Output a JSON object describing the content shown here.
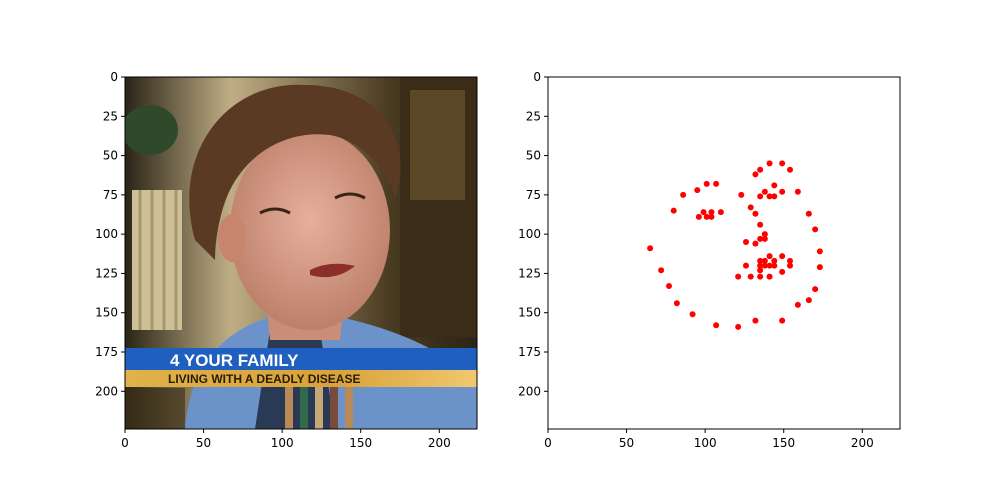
{
  "figure": {
    "background": "#ffffff",
    "panels": [
      "photo",
      "landmarks"
    ]
  },
  "photo_panel": {
    "caption_main": "4 YOUR FAMILY",
    "caption_sub": "LIVING WITH A DEADLY DISEASE",
    "colors": {
      "banner_blue": "#1f5fbf",
      "banner_gold": "#d9a23a",
      "hair": "#5a3a22",
      "skin": "#d89a86",
      "jacket": "#6b93c9",
      "background_warm": "#c9b98e",
      "background_dark": "#2b2417"
    }
  },
  "chart_data": [
    {
      "type": "image",
      "title": "",
      "xlabel": "",
      "ylabel": "",
      "xlim": [
        0,
        224
      ],
      "ylim": [
        224,
        0
      ],
      "xticks": [
        0,
        50,
        100,
        150,
        200
      ],
      "yticks": [
        0,
        25,
        50,
        75,
        100,
        125,
        150,
        175,
        200
      ],
      "xtick_labels": [
        "0",
        "50",
        "100",
        "150",
        "200"
      ],
      "ytick_labels": [
        "0",
        "25",
        "50",
        "75",
        "100",
        "125",
        "150",
        "175",
        "200"
      ],
      "content": "photograph of a woman with a news caption banner"
    },
    {
      "type": "scatter",
      "title": "",
      "xlabel": "",
      "ylabel": "",
      "xlim": [
        0,
        224
      ],
      "ylim": [
        224,
        0
      ],
      "xticks": [
        0,
        50,
        100,
        150,
        200
      ],
      "yticks": [
        0,
        25,
        50,
        75,
        100,
        125,
        150,
        175,
        200
      ],
      "xtick_labels": [
        "0",
        "50",
        "100",
        "150",
        "200"
      ],
      "ytick_labels": [
        "0",
        "25",
        "50",
        "75",
        "100",
        "125",
        "150",
        "175",
        "200"
      ],
      "marker_color": "#ff0000",
      "points": [
        [
          65,
          109
        ],
        [
          72,
          123
        ],
        [
          77,
          133
        ],
        [
          82,
          144
        ],
        [
          92,
          151
        ],
        [
          107,
          158
        ],
        [
          121,
          159
        ],
        [
          132,
          155
        ],
        [
          149,
          155
        ],
        [
          159,
          145
        ],
        [
          166,
          142
        ],
        [
          170,
          135
        ],
        [
          173,
          121
        ],
        [
          173,
          111
        ],
        [
          170,
          97
        ],
        [
          166,
          87
        ],
        [
          159,
          73
        ],
        [
          80,
          85
        ],
        [
          86,
          75
        ],
        [
          95,
          72
        ],
        [
          101,
          68
        ],
        [
          107,
          68
        ],
        [
          123,
          75
        ],
        [
          132,
          62
        ],
        [
          135,
          59
        ],
        [
          141,
          55
        ],
        [
          149,
          55
        ],
        [
          154,
          59
        ],
        [
          129,
          83
        ],
        [
          132,
          87
        ],
        [
          135,
          94
        ],
        [
          138,
          100
        ],
        [
          126,
          105
        ],
        [
          132,
          106
        ],
        [
          135,
          103
        ],
        [
          138,
          103
        ],
        [
          96,
          89
        ],
        [
          99,
          86
        ],
        [
          101,
          89
        ],
        [
          104,
          89
        ],
        [
          104,
          86
        ],
        [
          110,
          86
        ],
        [
          135,
          76
        ],
        [
          138,
          73
        ],
        [
          141,
          76
        ],
        [
          144,
          76
        ],
        [
          144,
          69
        ],
        [
          149,
          73
        ],
        [
          121,
          127
        ],
        [
          126,
          120
        ],
        [
          129,
          127
        ],
        [
          135,
          120
        ],
        [
          135,
          117
        ],
        [
          138,
          120
        ],
        [
          141,
          114
        ],
        [
          144,
          117
        ],
        [
          149,
          114
        ],
        [
          154,
          117
        ],
        [
          154,
          120
        ],
        [
          149,
          124
        ],
        [
          144,
          120
        ],
        [
          141,
          120
        ],
        [
          138,
          117
        ],
        [
          135,
          127
        ],
        [
          141,
          127
        ],
        [
          135,
          123
        ]
      ]
    }
  ]
}
